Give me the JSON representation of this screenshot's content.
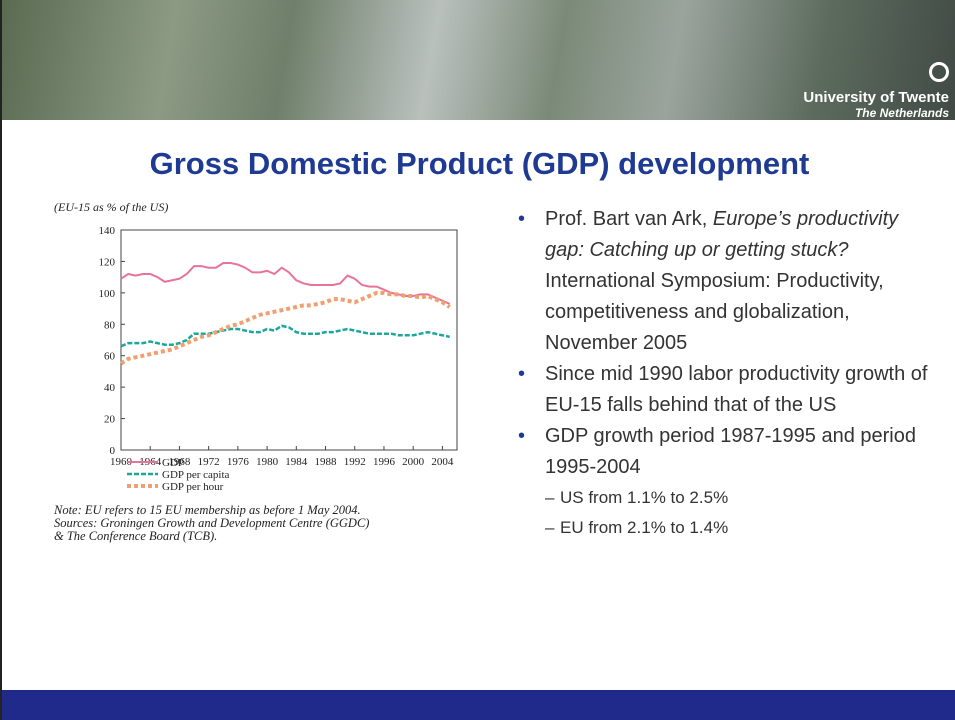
{
  "header": {
    "university": "University of Twente",
    "country": "The Netherlands"
  },
  "title": "Gross Domestic Product (GDP) development",
  "chart_data": {
    "type": "line",
    "y_label": "(EU-15 as % of the US)",
    "x": [
      1960,
      1961,
      1962,
      1963,
      1964,
      1965,
      1966,
      1967,
      1968,
      1969,
      1970,
      1971,
      1972,
      1973,
      1974,
      1975,
      1976,
      1977,
      1978,
      1979,
      1980,
      1981,
      1982,
      1983,
      1984,
      1985,
      1986,
      1987,
      1988,
      1989,
      1990,
      1991,
      1992,
      1993,
      1994,
      1995,
      1996,
      1997,
      1998,
      1999,
      2000,
      2001,
      2002,
      2003,
      2004,
      2005
    ],
    "xlim": [
      1960,
      2006
    ],
    "xticks": [
      1960,
      1964,
      1968,
      1972,
      1976,
      1980,
      1984,
      1988,
      1992,
      1996,
      2000,
      2004
    ],
    "ylim": [
      0,
      140
    ],
    "yticks": [
      0,
      20,
      40,
      60,
      80,
      100,
      120,
      140
    ],
    "grid": false,
    "series": [
      {
        "name": "GDP",
        "color": "#e8739a",
        "style": "solid",
        "values": [
          109,
          112,
          111,
          112,
          112,
          110,
          107,
          108,
          109,
          112,
          117,
          117,
          116,
          116,
          119,
          119,
          118,
          116,
          113,
          113,
          114,
          112,
          116,
          113,
          108,
          106,
          105,
          105,
          105,
          105,
          106,
          111,
          109,
          105,
          104,
          104,
          102,
          100,
          99,
          98,
          98,
          99,
          99,
          97,
          95,
          93
        ]
      },
      {
        "name": "GDP per capita",
        "color": "#1aa89a",
        "style": "dashed",
        "values": [
          66,
          68,
          68,
          68,
          69,
          68,
          67,
          67,
          68,
          70,
          74,
          74,
          74,
          75,
          76,
          77,
          77,
          76,
          75,
          75,
          77,
          76,
          79,
          78,
          75,
          74,
          74,
          74,
          75,
          75,
          76,
          77,
          76,
          75,
          74,
          74,
          74,
          74,
          73,
          73,
          73,
          74,
          75,
          74,
          73,
          72
        ]
      },
      {
        "name": "GDP per hour",
        "color": "#f0a070",
        "style": "dotted",
        "values": [
          55,
          58,
          59,
          60,
          61,
          62,
          63,
          64,
          66,
          68,
          70,
          72,
          73,
          75,
          77,
          79,
          80,
          82,
          84,
          86,
          87,
          88,
          89,
          90,
          91,
          92,
          92,
          93,
          94,
          96,
          96,
          95,
          94,
          96,
          98,
          100,
          100,
          99,
          99,
          98,
          98,
          97,
          98,
          96,
          94,
          91
        ]
      }
    ],
    "notes": [
      "Note: EU refers to 15 EU membership as before 1 May 2004.",
      "Sources: Groningen Growth and Development Centre (GGDC)",
      "& The Conference Board (TCB)."
    ]
  },
  "bullets": [
    {
      "author": "Prof. Bart van Ark,",
      "work": "Europe’s productivity gap: Catching up or getting stuck?",
      "rest": "International Symposium: Productivity, competitiveness and globalization, November 2005"
    },
    {
      "text": "Since mid 1990 labor productivity growth of EU-15 falls behind that of the US"
    },
    {
      "text": "GDP growth period 1987-1995 and period 1995-2004",
      "sub": [
        "US from 1.1% to 2.5%",
        "EU from 2.1% to 1.4%"
      ]
    }
  ]
}
